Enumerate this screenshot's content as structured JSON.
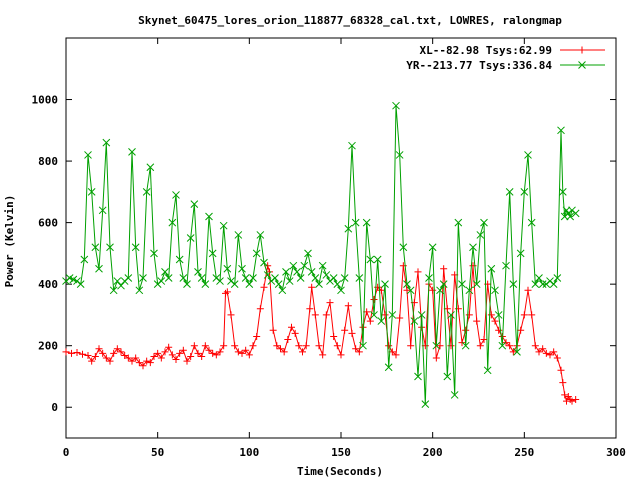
{
  "chart_data": {
    "type": "line",
    "title": "Skynet_60475_lores_orion_118877_68328_cal.txt, LOWRES, ralongmap",
    "xlabel": "Time(Seconds)",
    "ylabel": "Power (Kelvin)",
    "xlim": [
      0,
      300
    ],
    "ylim": [
      -100,
      1200
    ],
    "xticks": [
      0,
      50,
      100,
      150,
      200,
      250,
      300
    ],
    "yticks": [
      0,
      200,
      400,
      600,
      800,
      1000
    ],
    "grid": false,
    "legend_position": "top-right",
    "series": [
      {
        "name": "XL--82.98 Tsys:62.99",
        "color": "#ff0000",
        "marker": "plus",
        "points": [
          [
            0,
            180
          ],
          [
            3,
            175
          ],
          [
            6,
            178
          ],
          [
            9,
            172
          ],
          [
            12,
            168
          ],
          [
            14,
            150
          ],
          [
            16,
            165
          ],
          [
            18,
            190
          ],
          [
            20,
            175
          ],
          [
            22,
            160
          ],
          [
            24,
            150
          ],
          [
            26,
            175
          ],
          [
            28,
            190
          ],
          [
            30,
            180
          ],
          [
            32,
            168
          ],
          [
            34,
            160
          ],
          [
            36,
            150
          ],
          [
            38,
            160
          ],
          [
            40,
            145
          ],
          [
            42,
            135
          ],
          [
            44,
            150
          ],
          [
            46,
            145
          ],
          [
            48,
            165
          ],
          [
            50,
            175
          ],
          [
            52,
            160
          ],
          [
            54,
            180
          ],
          [
            56,
            195
          ],
          [
            58,
            170
          ],
          [
            60,
            155
          ],
          [
            62,
            175
          ],
          [
            64,
            185
          ],
          [
            66,
            150
          ],
          [
            68,
            165
          ],
          [
            70,
            200
          ],
          [
            72,
            175
          ],
          [
            74,
            165
          ],
          [
            76,
            200
          ],
          [
            78,
            185
          ],
          [
            80,
            175
          ],
          [
            82,
            170
          ],
          [
            84,
            180
          ],
          [
            86,
            200
          ],
          [
            87,
            370
          ],
          [
            88,
            375
          ],
          [
            90,
            300
          ],
          [
            92,
            200
          ],
          [
            94,
            180
          ],
          [
            96,
            175
          ],
          [
            98,
            185
          ],
          [
            100,
            170
          ],
          [
            102,
            200
          ],
          [
            104,
            230
          ],
          [
            106,
            320
          ],
          [
            108,
            390
          ],
          [
            110,
            460
          ],
          [
            111,
            440
          ],
          [
            113,
            250
          ],
          [
            115,
            200
          ],
          [
            117,
            190
          ],
          [
            119,
            180
          ],
          [
            121,
            220
          ],
          [
            123,
            260
          ],
          [
            125,
            240
          ],
          [
            127,
            200
          ],
          [
            129,
            180
          ],
          [
            131,
            200
          ],
          [
            133,
            320
          ],
          [
            134,
            390
          ],
          [
            136,
            300
          ],
          [
            138,
            200
          ],
          [
            140,
            170
          ],
          [
            142,
            300
          ],
          [
            144,
            340
          ],
          [
            146,
            230
          ],
          [
            148,
            200
          ],
          [
            150,
            170
          ],
          [
            152,
            250
          ],
          [
            154,
            330
          ],
          [
            156,
            240
          ],
          [
            158,
            190
          ],
          [
            160,
            180
          ],
          [
            162,
            260
          ],
          [
            164,
            310
          ],
          [
            166,
            280
          ],
          [
            168,
            350
          ],
          [
            170,
            390
          ],
          [
            172,
            380
          ],
          [
            174,
            300
          ],
          [
            176,
            200
          ],
          [
            178,
            180
          ],
          [
            180,
            170
          ],
          [
            182,
            290
          ],
          [
            184,
            460
          ],
          [
            186,
            380
          ],
          [
            188,
            200
          ],
          [
            190,
            340
          ],
          [
            192,
            440
          ],
          [
            194,
            260
          ],
          [
            196,
            200
          ],
          [
            198,
            400
          ],
          [
            200,
            380
          ],
          [
            202,
            160
          ],
          [
            204,
            200
          ],
          [
            206,
            450
          ],
          [
            208,
            320
          ],
          [
            210,
            200
          ],
          [
            212,
            430
          ],
          [
            214,
            320
          ],
          [
            216,
            210
          ],
          [
            218,
            250
          ],
          [
            220,
            300
          ],
          [
            222,
            460
          ],
          [
            224,
            280
          ],
          [
            226,
            200
          ],
          [
            228,
            220
          ],
          [
            230,
            400
          ],
          [
            232,
            300
          ],
          [
            234,
            280
          ],
          [
            236,
            250
          ],
          [
            238,
            230
          ],
          [
            240,
            210
          ],
          [
            242,
            200
          ],
          [
            244,
            180
          ],
          [
            246,
            200
          ],
          [
            248,
            250
          ],
          [
            250,
            300
          ],
          [
            252,
            380
          ],
          [
            254,
            300
          ],
          [
            256,
            200
          ],
          [
            258,
            180
          ],
          [
            260,
            190
          ],
          [
            262,
            175
          ],
          [
            264,
            170
          ],
          [
            266,
            180
          ],
          [
            268,
            160
          ],
          [
            270,
            120
          ],
          [
            271,
            80
          ],
          [
            272,
            40
          ],
          [
            273,
            20
          ],
          [
            274,
            35
          ],
          [
            275,
            25
          ],
          [
            276,
            20
          ],
          [
            278,
            25
          ]
        ]
      },
      {
        "name": "YR--213.77 Tsys:336.84",
        "color": "#00a000",
        "marker": "x",
        "points": [
          [
            0,
            410
          ],
          [
            2,
            420
          ],
          [
            4,
            415
          ],
          [
            6,
            410
          ],
          [
            8,
            400
          ],
          [
            10,
            480
          ],
          [
            12,
            820
          ],
          [
            14,
            700
          ],
          [
            16,
            520
          ],
          [
            18,
            450
          ],
          [
            20,
            640
          ],
          [
            22,
            860
          ],
          [
            24,
            520
          ],
          [
            26,
            380
          ],
          [
            28,
            410
          ],
          [
            30,
            395
          ],
          [
            32,
            410
          ],
          [
            34,
            420
          ],
          [
            36,
            830
          ],
          [
            38,
            520
          ],
          [
            40,
            380
          ],
          [
            42,
            420
          ],
          [
            44,
            700
          ],
          [
            46,
            780
          ],
          [
            48,
            500
          ],
          [
            50,
            400
          ],
          [
            52,
            410
          ],
          [
            54,
            440
          ],
          [
            56,
            420
          ],
          [
            58,
            600
          ],
          [
            60,
            690
          ],
          [
            62,
            480
          ],
          [
            64,
            420
          ],
          [
            66,
            400
          ],
          [
            68,
            550
          ],
          [
            70,
            660
          ],
          [
            72,
            440
          ],
          [
            74,
            420
          ],
          [
            76,
            400
          ],
          [
            78,
            620
          ],
          [
            80,
            500
          ],
          [
            82,
            420
          ],
          [
            84,
            410
          ],
          [
            86,
            590
          ],
          [
            88,
            450
          ],
          [
            90,
            410
          ],
          [
            92,
            400
          ],
          [
            94,
            560
          ],
          [
            96,
            450
          ],
          [
            98,
            420
          ],
          [
            100,
            400
          ],
          [
            102,
            420
          ],
          [
            104,
            500
          ],
          [
            106,
            560
          ],
          [
            108,
            470
          ],
          [
            110,
            430
          ],
          [
            112,
            410
          ],
          [
            114,
            420
          ],
          [
            116,
            400
          ],
          [
            118,
            380
          ],
          [
            120,
            440
          ],
          [
            122,
            410
          ],
          [
            124,
            460
          ],
          [
            126,
            440
          ],
          [
            128,
            420
          ],
          [
            130,
            460
          ],
          [
            132,
            500
          ],
          [
            134,
            440
          ],
          [
            136,
            420
          ],
          [
            138,
            400
          ],
          [
            140,
            460
          ],
          [
            142,
            430
          ],
          [
            144,
            410
          ],
          [
            146,
            420
          ],
          [
            148,
            400
          ],
          [
            150,
            380
          ],
          [
            152,
            420
          ],
          [
            154,
            580
          ],
          [
            156,
            850
          ],
          [
            158,
            600
          ],
          [
            160,
            420
          ],
          [
            162,
            200
          ],
          [
            164,
            600
          ],
          [
            166,
            480
          ],
          [
            168,
            300
          ],
          [
            170,
            480
          ],
          [
            172,
            280
          ],
          [
            174,
            400
          ],
          [
            176,
            130
          ],
          [
            178,
            300
          ],
          [
            180,
            980
          ],
          [
            182,
            820
          ],
          [
            184,
            520
          ],
          [
            186,
            400
          ],
          [
            188,
            380
          ],
          [
            190,
            280
          ],
          [
            192,
            100
          ],
          [
            194,
            300
          ],
          [
            196,
            10
          ],
          [
            198,
            420
          ],
          [
            200,
            520
          ],
          [
            202,
            200
          ],
          [
            204,
            380
          ],
          [
            206,
            400
          ],
          [
            208,
            100
          ],
          [
            210,
            300
          ],
          [
            212,
            40
          ],
          [
            214,
            600
          ],
          [
            216,
            400
          ],
          [
            218,
            200
          ],
          [
            220,
            380
          ],
          [
            222,
            520
          ],
          [
            224,
            400
          ],
          [
            226,
            560
          ],
          [
            228,
            600
          ],
          [
            230,
            120
          ],
          [
            232,
            450
          ],
          [
            234,
            380
          ],
          [
            236,
            300
          ],
          [
            238,
            200
          ],
          [
            240,
            460
          ],
          [
            242,
            700
          ],
          [
            244,
            400
          ],
          [
            246,
            180
          ],
          [
            248,
            500
          ],
          [
            250,
            700
          ],
          [
            252,
            820
          ],
          [
            254,
            600
          ],
          [
            256,
            400
          ],
          [
            258,
            420
          ],
          [
            260,
            400
          ],
          [
            262,
            400
          ],
          [
            264,
            410
          ],
          [
            266,
            400
          ],
          [
            268,
            420
          ],
          [
            270,
            900
          ],
          [
            271,
            700
          ],
          [
            272,
            620
          ],
          [
            273,
            640
          ],
          [
            274,
            630
          ],
          [
            275,
            620
          ],
          [
            276,
            640
          ],
          [
            278,
            630
          ]
        ]
      }
    ]
  }
}
